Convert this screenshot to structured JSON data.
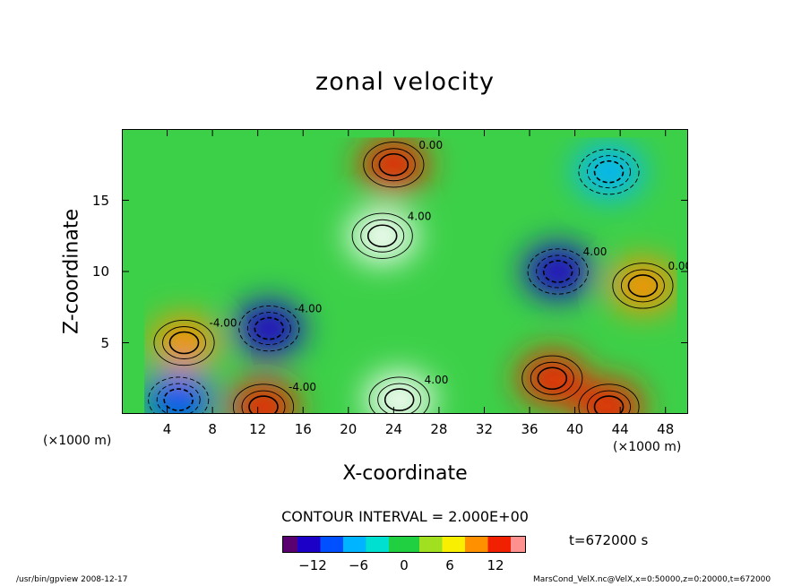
{
  "chart_data": {
    "type": "heatmap",
    "title": "zonal velocity",
    "xlabel": "X-coordinate",
    "ylabel": "Z-coordinate",
    "x_unit_left": "(×1000 m)",
    "x_unit_right": "(×1000 m)",
    "x_ticks": [
      "4",
      "8",
      "12",
      "16",
      "20",
      "24",
      "28",
      "32",
      "36",
      "40",
      "44",
      "48"
    ],
    "x_tick_values": [
      4,
      8,
      12,
      16,
      20,
      24,
      28,
      32,
      36,
      40,
      44,
      48
    ],
    "y_ticks": [
      "5",
      "10",
      "15"
    ],
    "y_tick_values": [
      5,
      10,
      15
    ],
    "xlim": [
      0,
      50
    ],
    "ylim": [
      0,
      20
    ],
    "contour_interval": "CONTOUR INTERVAL = 2.000E+00",
    "contour_labels": [
      "4.00",
      "0.00",
      "-4.00",
      "4.00",
      "-4.00",
      "0.00",
      "4.00",
      "-4.00"
    ],
    "colorbar": {
      "min": -16,
      "max": 16,
      "ticks": [
        "−12",
        "−6",
        "0",
        "6",
        "12"
      ],
      "tick_values": [
        -12,
        -6,
        0,
        6,
        12
      ],
      "colormap": [
        "#5a0070",
        "#1c00c8",
        "#0050ff",
        "#00b4ff",
        "#00e0d0",
        "#20d040",
        "#a0e020",
        "#f8f000",
        "#ff9000",
        "#f02000",
        "#ff9090"
      ]
    },
    "features": [
      {
        "x": 23,
        "z": 12.5,
        "value": 16,
        "note": "strong positive jet (white core)"
      },
      {
        "x": 24,
        "z": 17.5,
        "value": 14
      },
      {
        "x": 13,
        "z": 6,
        "value": -12
      },
      {
        "x": 38.5,
        "z": 10,
        "value": -14
      },
      {
        "x": 5.5,
        "z": 5,
        "value": 8
      },
      {
        "x": 46,
        "z": 9,
        "value": 8
      },
      {
        "x": 24.5,
        "z": 1,
        "value": 16
      },
      {
        "x": 12.5,
        "z": 0.5,
        "value": 14
      },
      {
        "x": 38,
        "z": 2.5,
        "value": 12
      },
      {
        "x": 43,
        "z": 0.5,
        "value": 14
      },
      {
        "x": 5,
        "z": 1,
        "value": -10
      },
      {
        "x": 43,
        "z": 17,
        "value": -8
      }
    ]
  },
  "timestamp": "t=672000 s",
  "footer_left": "/usr/bin/gpview  2008-12-17",
  "footer_right": "MarsCond_VelX.nc@VelX,x=0:50000,z=0:20000,t=672000"
}
